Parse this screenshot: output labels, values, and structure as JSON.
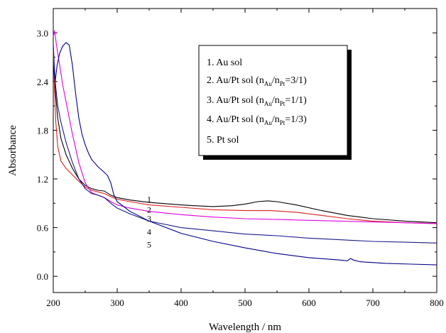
{
  "chart_data": {
    "type": "line",
    "title": "",
    "xlabel": "Wavelength / nm",
    "ylabel": "Absorbance",
    "xlim": [
      200,
      800
    ],
    "ylim": [
      -0.2,
      3.3
    ],
    "xticks": [
      200,
      300,
      400,
      500,
      600,
      700,
      800
    ],
    "yticks": [
      0.0,
      0.6,
      1.2,
      1.8,
      2.4,
      3.0
    ],
    "ytick_labels": [
      "0.0",
      "0.6",
      "1.2",
      "1.8",
      "2.4",
      "3.0"
    ],
    "grid": false,
    "legend_position": "top-right",
    "legend": [
      {
        "prefix": "1. Au sol",
        "a": "",
        "b": "",
        "suffix": ""
      },
      {
        "prefix": "2. Au/Pt sol (n",
        "a": "Au",
        "mid": "/n",
        "b": "Pt",
        "suffix": "=3/1)"
      },
      {
        "prefix": "3. Au/Pt sol (n",
        "a": "Au",
        "mid": "/n",
        "b": "Pt",
        "suffix": "=1/1)"
      },
      {
        "prefix": "4. Au/Pt sol (n",
        "a": "Au",
        "mid": "/n",
        "b": "Pt",
        "suffix": "=1/3)"
      },
      {
        "prefix": "5. Pt sol",
        "a": "",
        "b": "",
        "suffix": ""
      }
    ],
    "series": [
      {
        "label": "1",
        "color": "#000000",
        "label_at": [
          350,
          0.95
        ],
        "points": [
          [
            200,
            2.85
          ],
          [
            203,
            2.3
          ],
          [
            207,
            1.95
          ],
          [
            212,
            1.7
          ],
          [
            220,
            1.5
          ],
          [
            230,
            1.33
          ],
          [
            240,
            1.2
          ],
          [
            250,
            1.12
          ],
          [
            260,
            1.08
          ],
          [
            270,
            1.06
          ],
          [
            280,
            1.05
          ],
          [
            290,
            1.0
          ],
          [
            300,
            0.97
          ],
          [
            320,
            0.94
          ],
          [
            350,
            0.91
          ],
          [
            400,
            0.88
          ],
          [
            420,
            0.87
          ],
          [
            450,
            0.86
          ],
          [
            480,
            0.87
          ],
          [
            500,
            0.89
          ],
          [
            520,
            0.92
          ],
          [
            535,
            0.93
          ],
          [
            550,
            0.92
          ],
          [
            580,
            0.88
          ],
          [
            620,
            0.81
          ],
          [
            660,
            0.75
          ],
          [
            700,
            0.71
          ],
          [
            750,
            0.68
          ],
          [
            800,
            0.66
          ]
        ]
      },
      {
        "label": "2",
        "color": "#e0201a",
        "label_at": [
          350,
          0.82
        ],
        "points": [
          [
            200,
            2.8
          ],
          [
            202,
            2.3
          ],
          [
            204,
            1.9
          ],
          [
            207,
            1.6
          ],
          [
            212,
            1.42
          ],
          [
            220,
            1.33
          ],
          [
            230,
            1.25
          ],
          [
            240,
            1.17
          ],
          [
            250,
            1.1
          ],
          [
            260,
            1.06
          ],
          [
            270,
            1.04
          ],
          [
            280,
            1.02
          ],
          [
            290,
            0.98
          ],
          [
            300,
            0.95
          ],
          [
            320,
            0.92
          ],
          [
            350,
            0.88
          ],
          [
            400,
            0.85
          ],
          [
            450,
            0.82
          ],
          [
            500,
            0.81
          ],
          [
            540,
            0.81
          ],
          [
            580,
            0.79
          ],
          [
            620,
            0.75
          ],
          [
            660,
            0.71
          ],
          [
            700,
            0.68
          ],
          [
            750,
            0.66
          ],
          [
            800,
            0.65
          ]
        ]
      },
      {
        "label": "3",
        "color": "#e000e0",
        "label_at": [
          350,
          0.71
        ],
        "points": [
          [
            200,
            2.95
          ],
          [
            202,
            3.03
          ],
          [
            205,
            2.85
          ],
          [
            210,
            2.6
          ],
          [
            215,
            2.35
          ],
          [
            220,
            2.15
          ],
          [
            230,
            1.75
          ],
          [
            240,
            1.4
          ],
          [
            250,
            1.15
          ],
          [
            260,
            1.03
          ],
          [
            270,
            1.0
          ],
          [
            280,
            0.97
          ],
          [
            290,
            0.92
          ],
          [
            300,
            0.88
          ],
          [
            320,
            0.84
          ],
          [
            350,
            0.8
          ],
          [
            400,
            0.76
          ],
          [
            450,
            0.73
          ],
          [
            500,
            0.71
          ],
          [
            550,
            0.7
          ],
          [
            600,
            0.69
          ],
          [
            650,
            0.68
          ],
          [
            700,
            0.67
          ],
          [
            750,
            0.66
          ],
          [
            800,
            0.65
          ]
        ]
      },
      {
        "label": "4",
        "color": "#1a1a8c",
        "label_at": [
          350,
          0.55
        ],
        "points": [
          [
            200,
            2.85
          ],
          [
            203,
            2.4
          ],
          [
            207,
            2.1
          ],
          [
            212,
            1.9
          ],
          [
            220,
            1.65
          ],
          [
            230,
            1.4
          ],
          [
            240,
            1.2
          ],
          [
            250,
            1.08
          ],
          [
            260,
            1.02
          ],
          [
            270,
            1.0
          ],
          [
            280,
            0.97
          ],
          [
            290,
            0.9
          ],
          [
            300,
            0.84
          ],
          [
            320,
            0.77
          ],
          [
            350,
            0.68
          ],
          [
            400,
            0.6
          ],
          [
            450,
            0.56
          ],
          [
            500,
            0.52
          ],
          [
            550,
            0.5
          ],
          [
            600,
            0.47
          ],
          [
            650,
            0.45
          ],
          [
            700,
            0.43
          ],
          [
            750,
            0.42
          ],
          [
            800,
            0.41
          ]
        ]
      },
      {
        "label": "5",
        "color": "#00008b",
        "label_at": [
          350,
          0.39
        ],
        "points": [
          [
            200,
            2.6
          ],
          [
            203,
            2.4
          ],
          [
            206,
            2.6
          ],
          [
            210,
            2.75
          ],
          [
            215,
            2.84
          ],
          [
            220,
            2.88
          ],
          [
            225,
            2.85
          ],
          [
            230,
            2.6
          ],
          [
            235,
            2.25
          ],
          [
            240,
            1.95
          ],
          [
            245,
            1.75
          ],
          [
            250,
            1.62
          ],
          [
            255,
            1.52
          ],
          [
            260,
            1.44
          ],
          [
            270,
            1.35
          ],
          [
            280,
            1.28
          ],
          [
            285,
            1.24
          ],
          [
            290,
            1.15
          ],
          [
            295,
            1.0
          ],
          [
            300,
            0.92
          ],
          [
            320,
            0.8
          ],
          [
            350,
            0.68
          ],
          [
            400,
            0.53
          ],
          [
            450,
            0.43
          ],
          [
            500,
            0.35
          ],
          [
            550,
            0.28
          ],
          [
            600,
            0.23
          ],
          [
            650,
            0.2
          ],
          [
            660,
            0.19
          ],
          [
            665,
            0.22
          ],
          [
            670,
            0.2
          ],
          [
            680,
            0.18
          ],
          [
            720,
            0.16
          ],
          [
            760,
            0.15
          ],
          [
            800,
            0.14
          ]
        ]
      }
    ]
  }
}
